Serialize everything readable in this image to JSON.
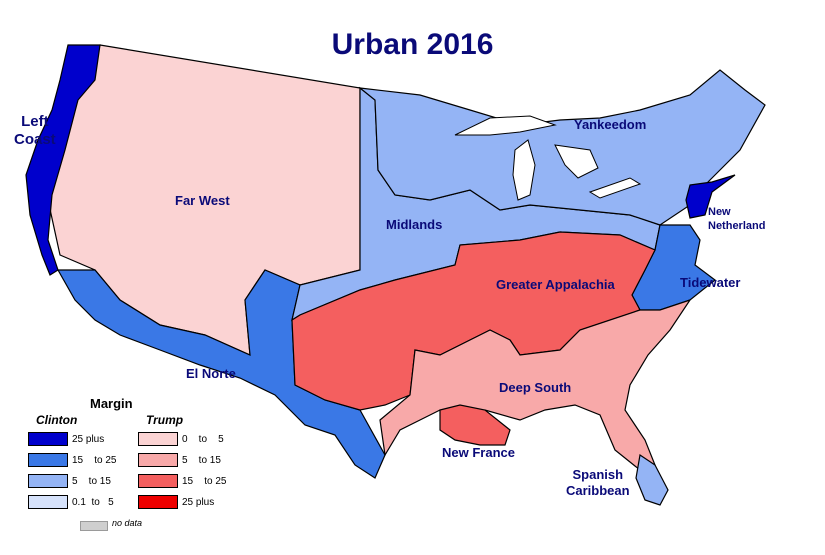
{
  "title": "Urban 2016",
  "regions": {
    "left_coast": "Left\nCoast",
    "far_west": "Far West",
    "yankeedom": "Yankeedom",
    "new_netherland": "New\nNetherland",
    "midlands": "Midlands",
    "tidewater": "Tidewater",
    "greater_appalachia": "Greater Appalachia",
    "el_norte": "El Norte",
    "deep_south": "Deep South",
    "new_france": "New France",
    "spanish_caribbean": "Spanish\nCaribbean"
  },
  "legend": {
    "title": "Margin",
    "clinton_header": "Clinton",
    "trump_header": "Trump",
    "clinton": [
      {
        "label": "25 plus",
        "color": "#0000cc"
      },
      {
        "label": "15    to 25",
        "color": "#3a78e6"
      },
      {
        "label": "5    to 15",
        "color": "#94b4f5"
      },
      {
        "label": "0.1  to   5",
        "color": "#d6e2fb"
      }
    ],
    "trump": [
      {
        "label": "0    to    5",
        "color": "#fbd3d3"
      },
      {
        "label": "5    to 15",
        "color": "#f8a9a9"
      },
      {
        "label": "15    to 25",
        "color": "#f45f5f"
      },
      {
        "label": "25 plus",
        "color": "#ee0000"
      }
    ],
    "no_data": "no data"
  },
  "colors": {
    "left_coast": "#0000cc",
    "far_west": "#fbd3d3",
    "yankeedom": "#94b4f5",
    "new_netherland": "#0000cc",
    "midlands": "#94b4f5",
    "tidewater": "#3a78e6",
    "greater_appalachia": "#f45f5f",
    "el_norte": "#3a78e6",
    "deep_south": "#f8a9a9",
    "new_france": "#f45f5f",
    "spanish_caribbean": "#94b4f5",
    "no_data": "#cfcfcf"
  }
}
